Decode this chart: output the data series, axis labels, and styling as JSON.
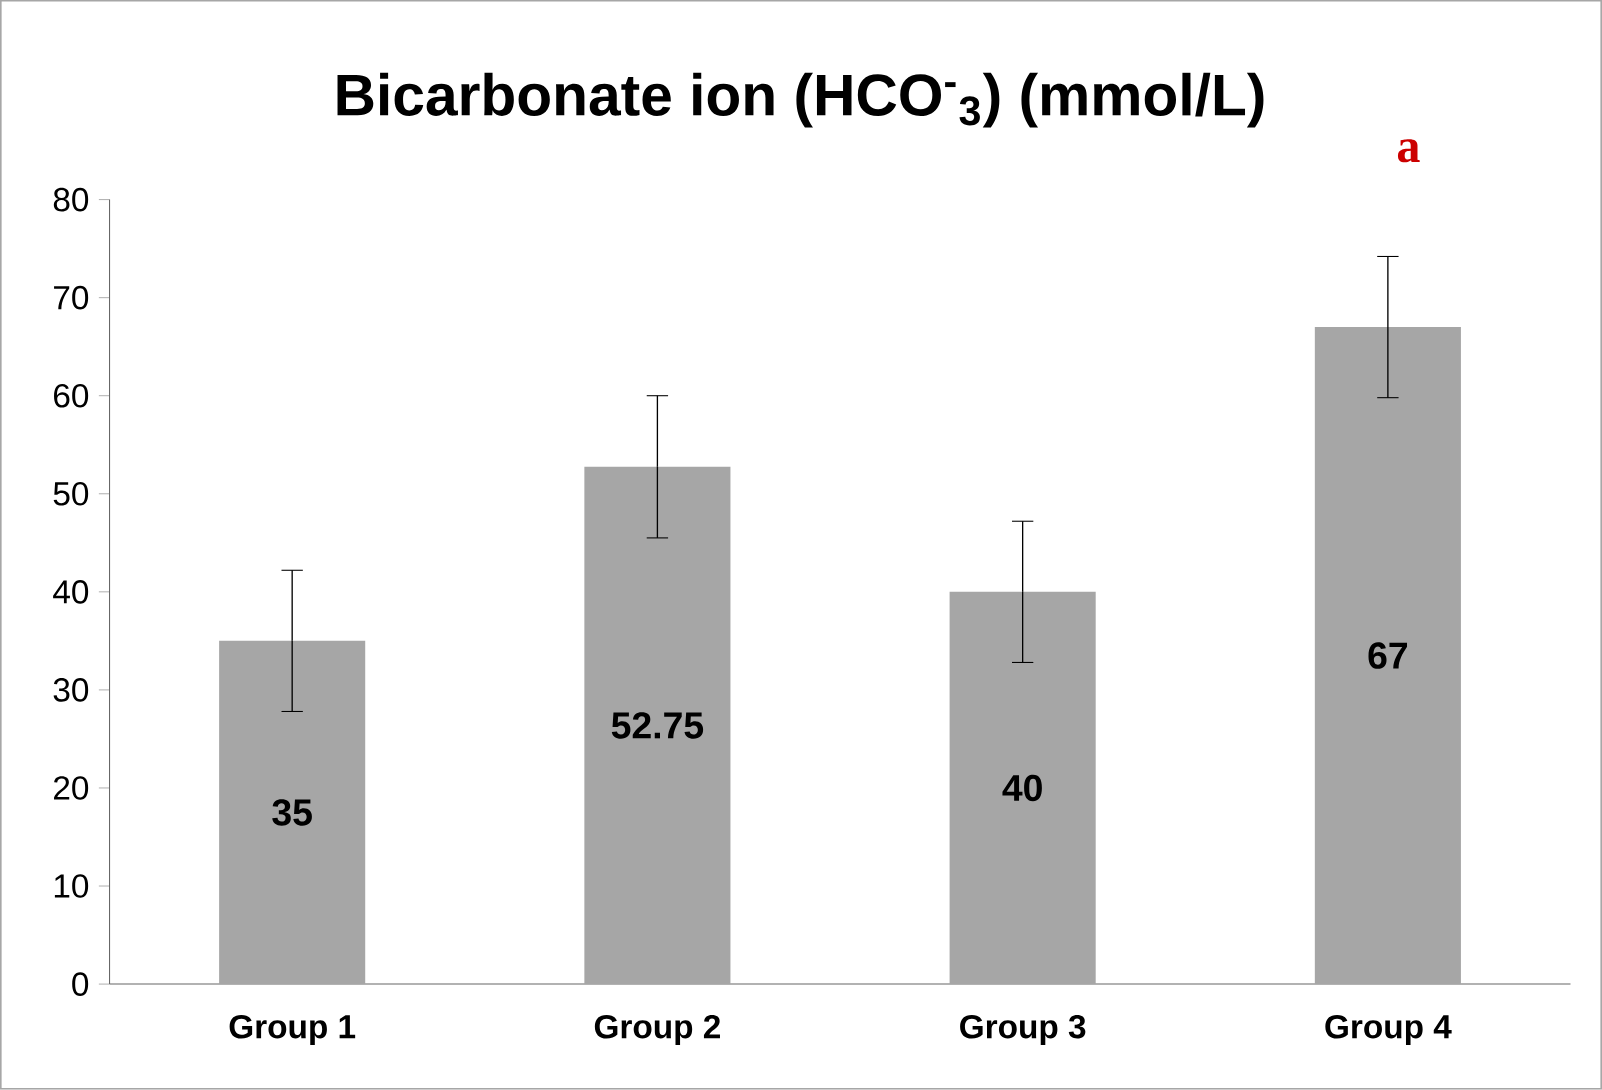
{
  "chart_data": {
    "type": "bar",
    "title": "Bicarbonate ion (HCO$^{-}$$_{3}$) (mmol/L)",
    "categories": [
      "Group 1",
      "Group 2",
      "Group 3",
      "Group 4"
    ],
    "values": [
      35,
      52.75,
      40,
      67
    ],
    "errors": [
      7.2,
      7.25,
      7.2,
      7.2
    ],
    "color": "#a6a6a6",
    "ylim": [
      0,
      80
    ],
    "yticks": [
      0,
      10,
      20,
      30,
      40,
      50,
      60,
      70,
      80
    ],
    "data_labels": true,
    "annotations": [
      "a"
    ]
  }
}
